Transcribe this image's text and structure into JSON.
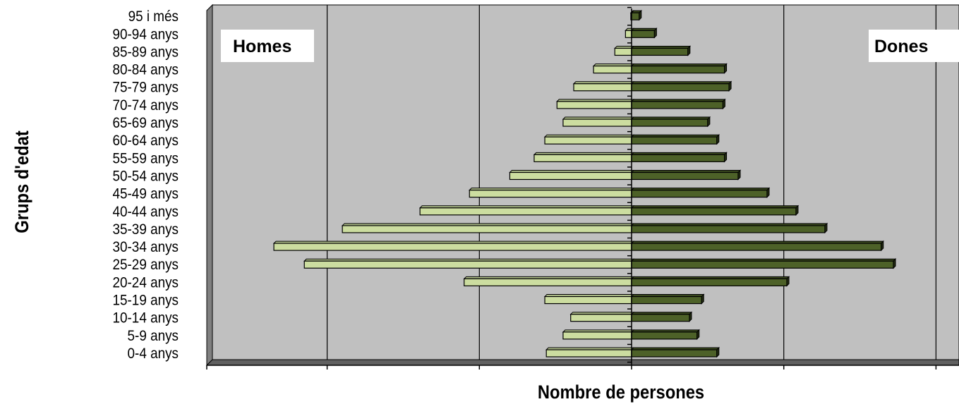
{
  "chart_data": {
    "type": "bar",
    "orientation": "horizontal",
    "subtype": "population-pyramid",
    "xlabel": "Nombre de persones",
    "ylabel": "Grups d'edat",
    "categories": [
      "0-4 anys",
      "5-9 anys",
      "10-14 anys",
      "15-19 anys",
      "20-24 anys",
      "25-29 anys",
      "30-34 anys",
      "35-39 anys",
      "40-44 anys",
      "45-49 anys",
      "50-54 anys",
      "55-59 anys",
      "60-64 anys",
      "65-69 anys",
      "70-74 anys",
      "75-79 anys",
      "80-84 anys",
      "85-89 anys",
      "90-94 anys",
      "95 i més"
    ],
    "series": [
      {
        "name": "Homes",
        "color": "#ccdda0",
        "values": [
          560,
          450,
          400,
          570,
          1100,
          2150,
          2350,
          1900,
          1390,
          1065,
          800,
          640,
          570,
          450,
          490,
          380,
          250,
          110,
          40,
          5
        ]
      },
      {
        "name": "Dones",
        "color": "#4d6128",
        "values": [
          560,
          430,
          380,
          460,
          1020,
          1720,
          1640,
          1270,
          1080,
          890,
          700,
          610,
          560,
          500,
          600,
          640,
          610,
          370,
          150,
          50
        ]
      }
    ],
    "xlim": [
      -2800,
      2150
    ],
    "grid": true,
    "legend": "none",
    "colors": {
      "plot_background": "#c0c0c0",
      "wall": "#808080",
      "gridline": "#000000"
    }
  }
}
